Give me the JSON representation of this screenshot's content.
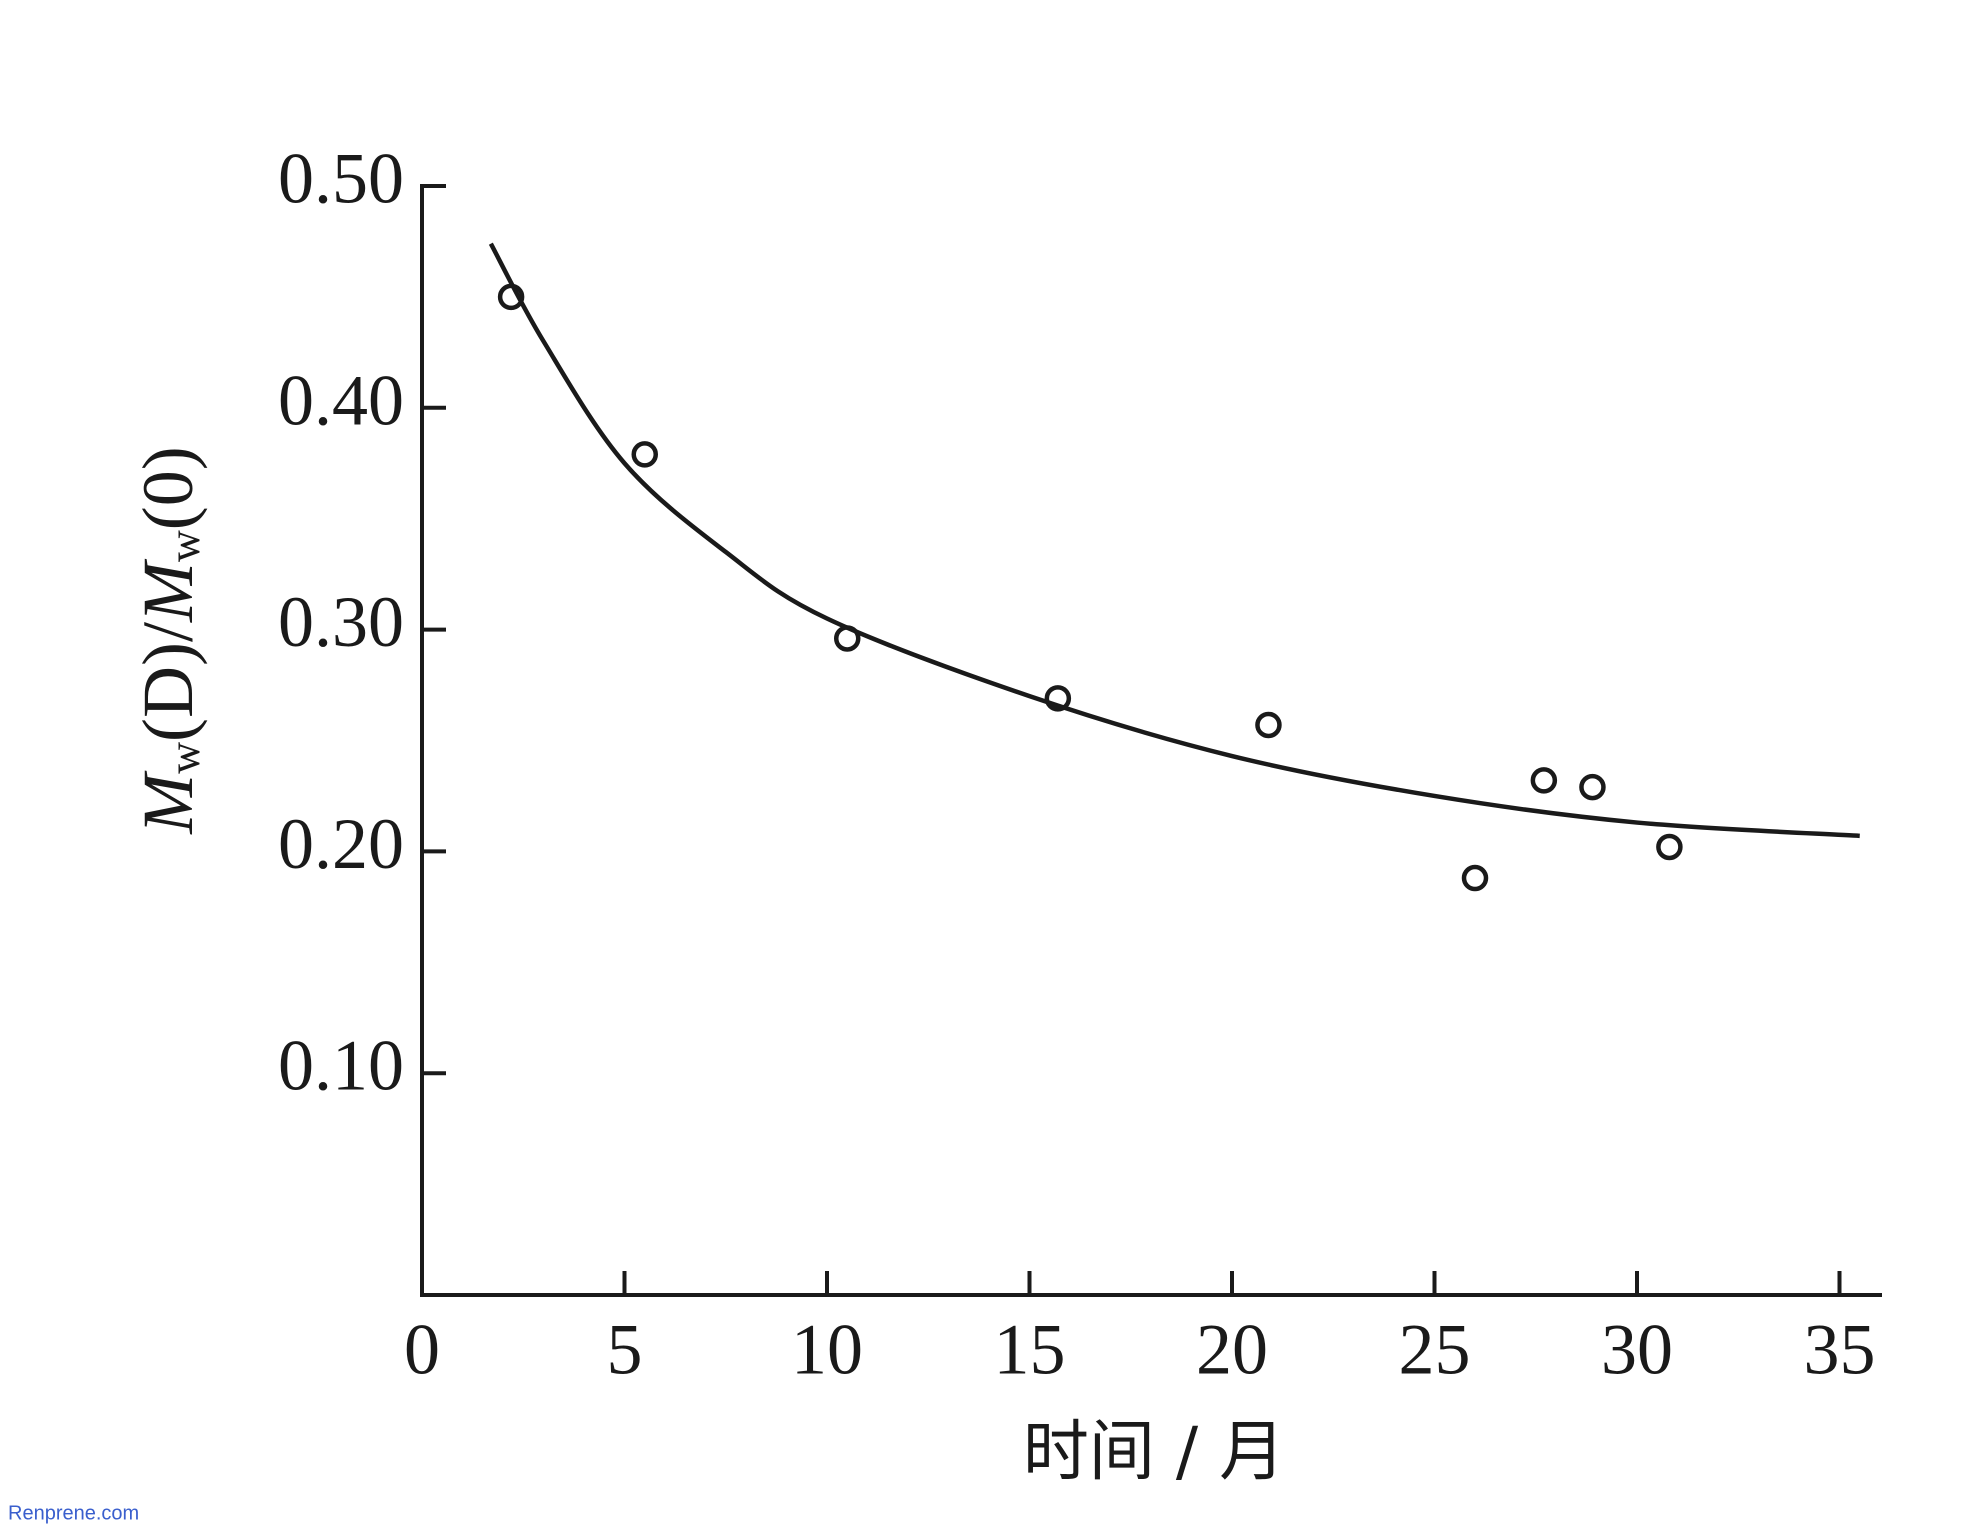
{
  "chart_data": {
    "type": "scatter",
    "ylabel": [
      "M",
      "w",
      "(D)/",
      "M",
      "w",
      "(0)"
    ],
    "xlabel": "时间 / 月",
    "watermark": "Renprene.com",
    "xlim": [
      0,
      36
    ],
    "ylim": [
      0,
      0.5
    ],
    "xticks": [
      0,
      5,
      10,
      15,
      20,
      25,
      30,
      35
    ],
    "yticks": [
      {
        "value": 0.1,
        "label": "0.10"
      },
      {
        "value": 0.2,
        "label": "0.20"
      },
      {
        "value": 0.3,
        "label": "0.30"
      },
      {
        "value": 0.4,
        "label": "0.40"
      },
      {
        "value": 0.5,
        "label": "0.50"
      }
    ],
    "series": [
      {
        "mode": "markers",
        "color": "#1a1a1a",
        "x": [
          2.2,
          5.5,
          10.5,
          15.7,
          20.9,
          26.0,
          27.7,
          28.9,
          30.8
        ],
        "values": [
          0.45,
          0.379,
          0.296,
          0.269,
          0.257,
          0.188,
          0.232,
          0.229,
          0.202
        ]
      },
      {
        "mode": "line",
        "color": "#1a1a1a",
        "x": [
          1.7,
          3,
          5,
          7.5,
          10,
          15,
          20,
          25,
          30,
          35.5
        ],
        "values": [
          0.474,
          0.43,
          0.375,
          0.335,
          0.305,
          0.27,
          0.243,
          0.225,
          0.213,
          0.207
        ]
      }
    ]
  }
}
